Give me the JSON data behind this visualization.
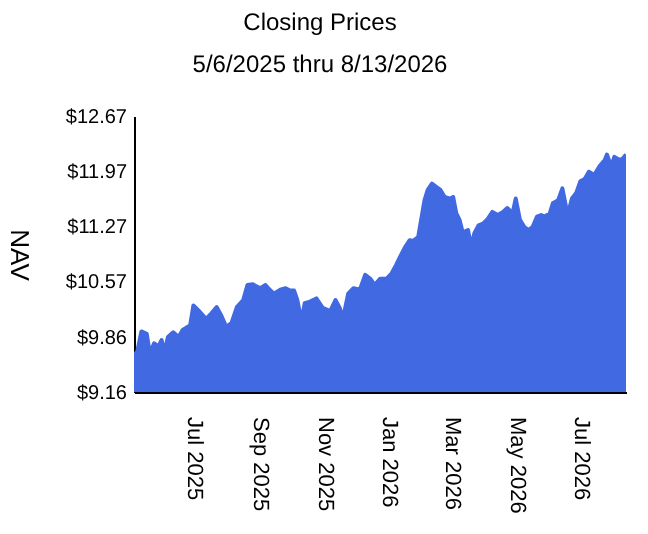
{
  "chart_data": {
    "type": "area",
    "title": "Closing Prices",
    "subtitle": "5/6/2025 thru 8/13/2026",
    "ylabel": "NAV",
    "x": [
      "2025-05-06",
      "2025-05-09",
      "2025-05-13",
      "2025-05-18",
      "2025-05-21",
      "2025-05-25",
      "2025-05-29",
      "2025-06-01",
      "2025-06-04",
      "2025-06-07",
      "2025-06-12",
      "2025-06-17",
      "2025-06-21",
      "2025-06-28",
      "2025-07-01",
      "2025-07-07",
      "2025-07-13",
      "2025-07-18",
      "2025-07-23",
      "2025-07-27",
      "2025-08-01",
      "2025-08-06",
      "2025-08-11",
      "2025-08-17",
      "2025-08-21",
      "2025-08-26",
      "2025-09-02",
      "2025-09-07",
      "2025-09-11",
      "2025-09-15",
      "2025-09-21",
      "2025-09-26",
      "2025-09-30",
      "2025-10-04",
      "2025-10-07",
      "2025-10-11",
      "2025-10-14",
      "2025-10-19",
      "2025-10-25",
      "2025-10-31",
      "2025-11-07",
      "2025-11-12",
      "2025-11-16",
      "2025-11-19",
      "2025-11-24",
      "2025-11-29",
      "2025-12-05",
      "2025-12-10",
      "2025-12-15",
      "2025-12-19",
      "2025-12-24",
      "2025-12-30",
      "2026-01-04",
      "2026-01-08",
      "2026-01-12",
      "2026-01-17",
      "2026-01-21",
      "2026-01-24",
      "2026-01-29",
      "2026-02-04",
      "2026-02-07",
      "2026-02-11",
      "2026-02-15",
      "2026-02-19",
      "2026-02-23",
      "2026-02-28",
      "2026-03-03",
      "2026-03-06",
      "2026-03-09",
      "2026-03-12",
      "2026-03-17",
      "2026-03-20",
      "2026-03-23",
      "2026-03-27",
      "2026-03-31",
      "2026-04-04",
      "2026-04-09",
      "2026-04-14",
      "2026-04-19",
      "2026-04-23",
      "2026-04-28",
      "2026-05-01",
      "2026-05-05",
      "2026-05-09",
      "2026-05-13",
      "2026-05-17",
      "2026-05-21",
      "2026-05-25",
      "2026-05-28",
      "2026-06-02",
      "2026-06-05",
      "2026-06-10",
      "2026-06-14",
      "2026-06-19",
      "2026-06-23",
      "2026-06-27",
      "2026-07-01",
      "2026-07-05",
      "2026-07-09",
      "2026-07-14",
      "2026-07-19",
      "2026-07-24",
      "2026-07-26",
      "2026-07-30",
      "2026-08-02",
      "2026-08-07",
      "2026-08-10",
      "2026-08-13"
    ],
    "series": [
      {
        "color": "#4169e1",
        "values": [
          9.63,
          9.67,
          9.93,
          9.9,
          9.65,
          9.78,
          9.74,
          9.82,
          9.67,
          9.86,
          9.92,
          9.86,
          9.95,
          10.01,
          10.26,
          10.18,
          10.09,
          10.16,
          10.24,
          10.14,
          9.99,
          10.04,
          10.24,
          10.33,
          10.52,
          10.53,
          10.48,
          10.52,
          10.46,
          10.41,
          10.46,
          10.48,
          10.45,
          10.45,
          10.33,
          10.06,
          10.29,
          10.31,
          10.35,
          10.23,
          10.19,
          10.33,
          10.23,
          10.09,
          10.41,
          10.48,
          10.46,
          10.65,
          10.6,
          10.52,
          10.6,
          10.6,
          10.67,
          10.77,
          10.88,
          11.01,
          11.09,
          11.08,
          11.13,
          11.6,
          11.73,
          11.81,
          11.77,
          11.73,
          11.64,
          11.62,
          11.64,
          11.43,
          11.35,
          11.19,
          11.22,
          11.01,
          11.18,
          11.28,
          11.3,
          11.35,
          11.45,
          11.41,
          11.45,
          11.5,
          11.43,
          11.62,
          11.35,
          11.26,
          11.22,
          11.26,
          11.39,
          11.41,
          11.39,
          11.43,
          11.56,
          11.6,
          11.75,
          11.41,
          11.62,
          11.69,
          11.84,
          11.87,
          11.96,
          11.92,
          12.03,
          12.11,
          12.18,
          12.03,
          12.15,
          12.11,
          12.13,
          12.18
        ]
      }
    ],
    "xlim": [
      "2025-05-06",
      "2026-08-13"
    ],
    "xticks": [
      {
        "value": "2025-07-01",
        "label": "Jul 2025"
      },
      {
        "value": "2025-09-01",
        "label": "Sep 2025"
      },
      {
        "value": "2025-11-01",
        "label": "Nov 2025"
      },
      {
        "value": "2026-01-01",
        "label": "Jan 2026"
      },
      {
        "value": "2026-03-01",
        "label": "Mar 2026"
      },
      {
        "value": "2026-05-01",
        "label": "May 2026"
      },
      {
        "value": "2026-07-01",
        "label": "Jul 2026"
      }
    ],
    "ylim": [
      9.16,
      12.67
    ],
    "yticks": [
      {
        "value": 9.16,
        "label": "$9.16"
      },
      {
        "value": 9.86,
        "label": "$9.86"
      },
      {
        "value": 10.57,
        "label": "$10.57"
      },
      {
        "value": 11.27,
        "label": "$11.27"
      },
      {
        "value": 11.97,
        "label": "$11.97"
      },
      {
        "value": 12.67,
        "label": "$12.67"
      }
    ],
    "grid": false
  }
}
